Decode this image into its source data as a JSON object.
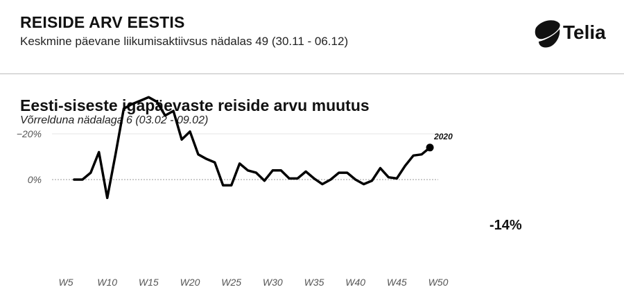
{
  "header": {
    "title": "REISIDE ARV EESTIS",
    "subtitle": "Keskmine päevane liikumisaktiivsus nädalas 49 (30.11 - 06.12)",
    "logo_text": "Telia"
  },
  "callout": {
    "value": "-14%"
  },
  "chart_data": {
    "type": "line",
    "title": "Eesti-siseste igapäevaste reiside arvu muutus",
    "subtitle": "Võrrelduna nädalaga 6 (03.02 - 09.02)",
    "xlabel": "",
    "ylabel": "",
    "y_ticks": [
      0,
      -20
    ],
    "y_tick_labels": [
      "0%",
      "−20%"
    ],
    "x_ticks": [
      5,
      10,
      15,
      20,
      25,
      30,
      35,
      40,
      45,
      50
    ],
    "x_tick_labels": [
      "W5",
      "W10",
      "W15",
      "W20",
      "W25",
      "W30",
      "W35",
      "W40",
      "W45",
      "W50"
    ],
    "xlim": [
      5,
      50
    ],
    "ylim": [
      -37,
      10
    ],
    "grid": true,
    "series": [
      {
        "name": "2020",
        "color": "#000000",
        "x": [
          6,
          7,
          8,
          9,
          10,
          11,
          12,
          13,
          14,
          15,
          16,
          17,
          18,
          19,
          20,
          21,
          22,
          23,
          24,
          25,
          26,
          27,
          28,
          29,
          30,
          31,
          32,
          33,
          34,
          35,
          36,
          37,
          38,
          39,
          40,
          41,
          42,
          43,
          44,
          45,
          46,
          47,
          48,
          49
        ],
        "y": [
          0,
          0,
          -3,
          -12,
          8,
          -11,
          -31,
          -33,
          -34.5,
          -36,
          -34,
          -28,
          -30,
          -17.5,
          -21,
          -11,
          -9,
          -7.5,
          2.5,
          2.5,
          -7,
          -4,
          -3,
          0.5,
          -4,
          -4,
          -0.5,
          -0.5,
          -3.5,
          -0.5,
          2,
          0,
          -3,
          -3,
          0,
          2,
          0.5,
          -5,
          -1,
          -0.5,
          -6,
          -10.5,
          -11,
          -14
        ]
      }
    ],
    "end_marker": {
      "x": 49,
      "y": -14
    }
  }
}
